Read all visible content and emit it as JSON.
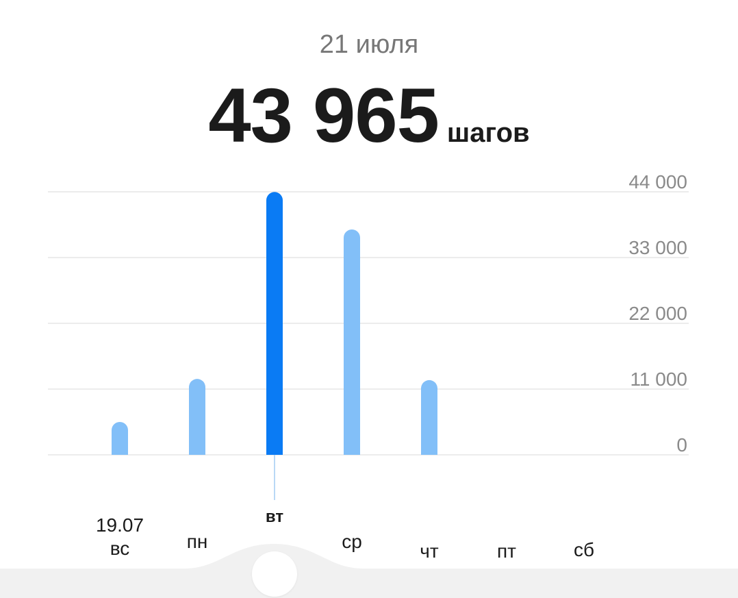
{
  "header": {
    "date": "21 июля",
    "steps_value": "43 965",
    "steps_unit": "шагов"
  },
  "colors": {
    "bar_selected": "#0a7bf4",
    "bar_default": "#82bff8",
    "grid": "#e6e6e6",
    "axis_text": "#8a8a8a"
  },
  "chart_data": {
    "type": "bar",
    "categories": [
      "вс",
      "пн",
      "вт",
      "ср",
      "чт",
      "пт",
      "сб"
    ],
    "values": [
      5500,
      12700,
      43965,
      37700,
      12500,
      0,
      0
    ],
    "selected_index": 2,
    "first_date_label": "19.07",
    "y_ticks": [
      "44 000",
      "33 000",
      "22 000",
      "11 000",
      "0"
    ],
    "ylim": [
      0,
      44000
    ],
    "grid": true
  }
}
